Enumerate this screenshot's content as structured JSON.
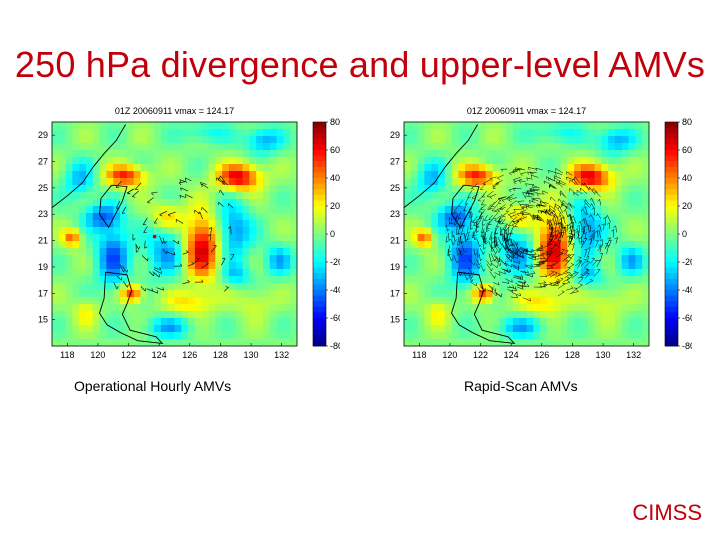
{
  "page": {
    "title": "250 hPa divergence and upper-level AMVs",
    "brand": "CIMSS",
    "accent_color": "#c0000a"
  },
  "chart_data": [
    {
      "type": "heatmap",
      "title": "01Z 20060911 vmax = 124.17",
      "caption": "Operational Hourly AMVs",
      "xticks": [
        "118",
        "120",
        "122",
        "124",
        "126",
        "128",
        "130",
        "132"
      ],
      "yticks": [
        "29",
        "27",
        "25",
        "23",
        "21",
        "19",
        "17",
        "15"
      ],
      "xlim": [
        117,
        133
      ],
      "ylim": [
        13,
        30
      ],
      "colorbar_ticks": [
        "80",
        "60",
        "40",
        "20",
        "0",
        "-20",
        "-40",
        "-60",
        "-80"
      ],
      "colorbar_range": [
        -80,
        80
      ],
      "colormap": "jet",
      "wind_barb_density": "sparse"
    },
    {
      "type": "heatmap",
      "title": "01Z 20060911 vmax = 124.17",
      "caption": "Rapid-Scan AMVs",
      "xticks": [
        "118",
        "120",
        "122",
        "124",
        "126",
        "128",
        "130",
        "132"
      ],
      "yticks": [
        "29",
        "27",
        "25",
        "23",
        "21",
        "19",
        "17",
        "15"
      ],
      "xlim": [
        117,
        133
      ],
      "ylim": [
        13,
        30
      ],
      "colorbar_ticks": [
        "80",
        "60",
        "40",
        "20",
        "0",
        "-20",
        "-40",
        "-60",
        "-80"
      ],
      "colorbar_range": [
        -80,
        80
      ],
      "colormap": "jet",
      "wind_barb_density": "dense"
    }
  ]
}
